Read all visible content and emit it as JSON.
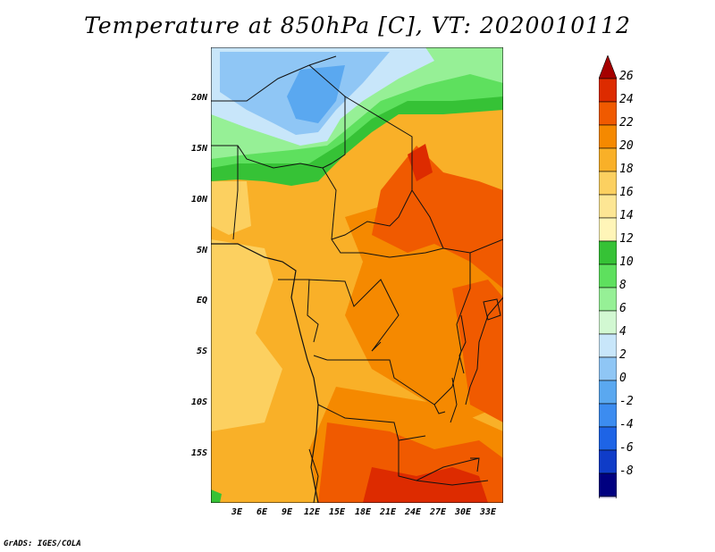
{
  "title": "Temperature at 850hPa [C], VT: 2020010112",
  "credit": "GrADS: IGES/COLA",
  "map": {
    "lat_labels": [
      "20N",
      "15N",
      "10N",
      "5N",
      "EQ",
      "5S",
      "10S",
      "15S"
    ],
    "lon_labels": [
      "3E",
      "6E",
      "9E",
      "12E",
      "15E",
      "18E",
      "21E",
      "24E",
      "27E",
      "30E",
      "33E"
    ]
  },
  "colorbar": {
    "labels": [
      "26",
      "24",
      "22",
      "20",
      "18",
      "16",
      "14",
      "12",
      "10",
      "8",
      "6",
      "4",
      "2",
      "0",
      "-2",
      "-4",
      "-6",
      "-8"
    ],
    "colors": [
      "#a50000",
      "#dd2b00",
      "#f05a00",
      "#f58900",
      "#f9b028",
      "#fcd060",
      "#fde694",
      "#fff5b8",
      "#36c236",
      "#5ee05e",
      "#96f096",
      "#d2f8d2",
      "#c8e6fa",
      "#8fc6f5",
      "#5aa8f0",
      "#3c8cf0",
      "#1e64e6",
      "#0f3cc8",
      "#000080",
      "#dcd8f0"
    ]
  }
}
